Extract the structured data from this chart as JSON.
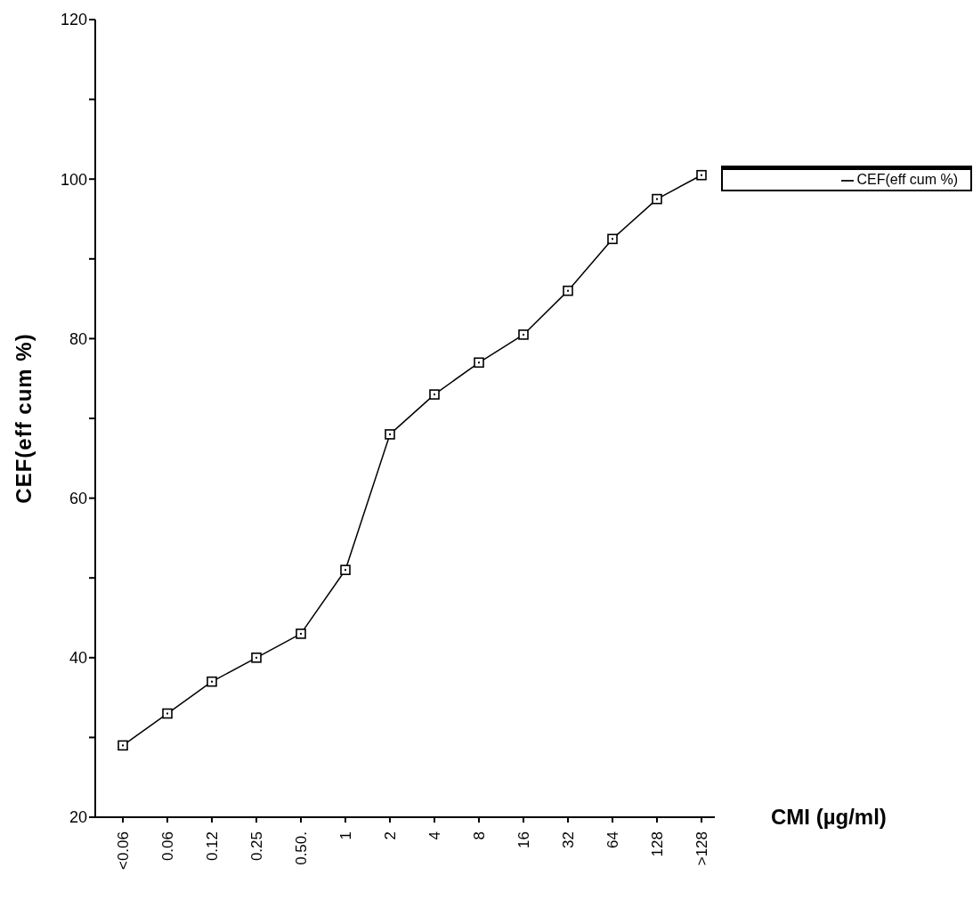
{
  "chart_data": {
    "type": "line",
    "xlabel": "CMI (µg/ml)",
    "ylabel": "CEF(eff cum %)",
    "categories": [
      "<0.06",
      "0.06",
      "0.12",
      "0.25",
      "0.50.",
      "1",
      "2",
      "4",
      "8",
      "16",
      "32",
      "64",
      "128",
      ">128"
    ],
    "series": [
      {
        "name": "CEF(eff cum %)",
        "color": "#000000",
        "values": [
          29,
          33,
          37,
          40,
          43,
          51,
          68,
          73,
          77,
          80.5,
          86,
          92.5,
          97.5,
          100.5
        ]
      }
    ],
    "ylim": [
      20,
      120
    ],
    "yticks": [
      20,
      {
        "value": 30,
        "label": null
      },
      40,
      {
        "value": 50,
        "label": null
      },
      60,
      {
        "value": 70,
        "label": null
      },
      80,
      {
        "value": 90,
        "label": null
      },
      100,
      {
        "value": 110,
        "label": null
      },
      120
    ],
    "grid": false,
    "legend": "right",
    "marker": "square",
    "line_style": "solid"
  }
}
